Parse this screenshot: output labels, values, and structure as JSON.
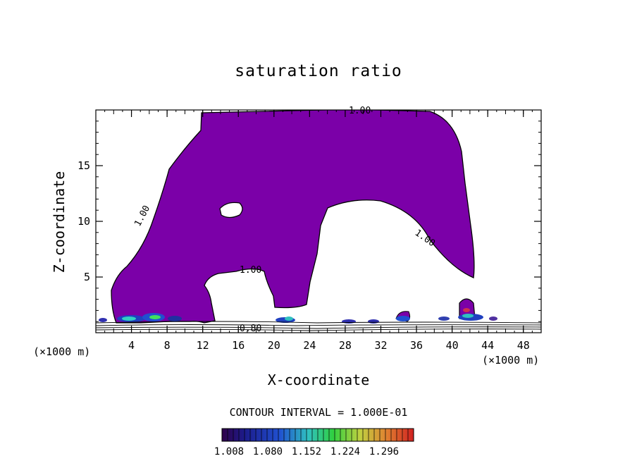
{
  "chart_data": {
    "type": "heatmap",
    "title": "saturation ratio",
    "xlabel": "X-coordinate",
    "ylabel": "Z-coordinate",
    "x_unit": "(×1000 m)",
    "z_unit": "(×1000 m)",
    "xlim": [
      0,
      50
    ],
    "ylim": [
      0,
      20
    ],
    "x_ticks": [
      "4",
      "8",
      "12",
      "16",
      "20",
      "24",
      "28",
      "32",
      "36",
      "40",
      "44",
      "48"
    ],
    "y_ticks": [
      "5",
      "10",
      "15"
    ],
    "contour_labels": [
      "1.00",
      "1.00",
      "1.00",
      "1.00",
      "0.80"
    ],
    "contour_interval": "CONTOUR INTERVAL = 1.000E-01",
    "colorbar_ticks": [
      "1.008",
      "1.080",
      "1.152",
      "1.224",
      "1.296"
    ],
    "fill_color": "#7b00a8"
  }
}
